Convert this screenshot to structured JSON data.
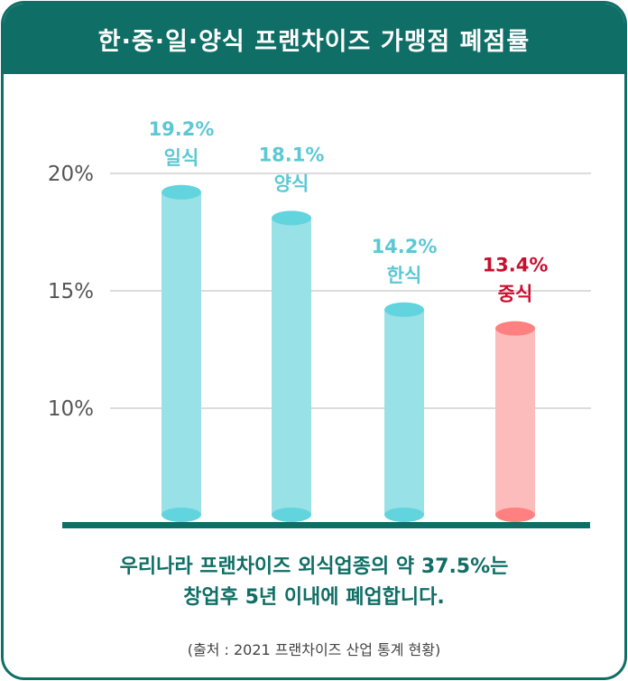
{
  "title": "한·중·일·양식 프랜차이즈 가맹점 폐점률",
  "chart_data": {
    "type": "bar",
    "categories": [
      "일식",
      "양식",
      "한식",
      "중식"
    ],
    "values": [
      19.2,
      18.1,
      14.2,
      13.4
    ],
    "value_labels": [
      "19.2%",
      "18.1%",
      "14.2%",
      "13.4%"
    ],
    "y_ticks": [
      10,
      15,
      20
    ],
    "y_tick_labels": [
      "10%",
      "15%",
      "20%"
    ],
    "ylim": [
      5,
      20
    ],
    "grid": true,
    "highlight_category": "중식"
  },
  "colors": {
    "brand": "#0f6e66",
    "bar": "#97e1e7",
    "bar_cap": "#62d4de",
    "bar_label": "#5cc8d4",
    "highlight_bar": "#fdbcbc",
    "highlight_cap": "#ff8080",
    "highlight_label": "#c8102e"
  },
  "caption": {
    "line1": "우리나라 프랜차이즈 외식업종의 약 37.5%는",
    "line2": "창업후 5년 이내에 폐업합니다."
  },
  "source": "(출처 : 2021  프랜차이즈 산업 통계 현황)"
}
